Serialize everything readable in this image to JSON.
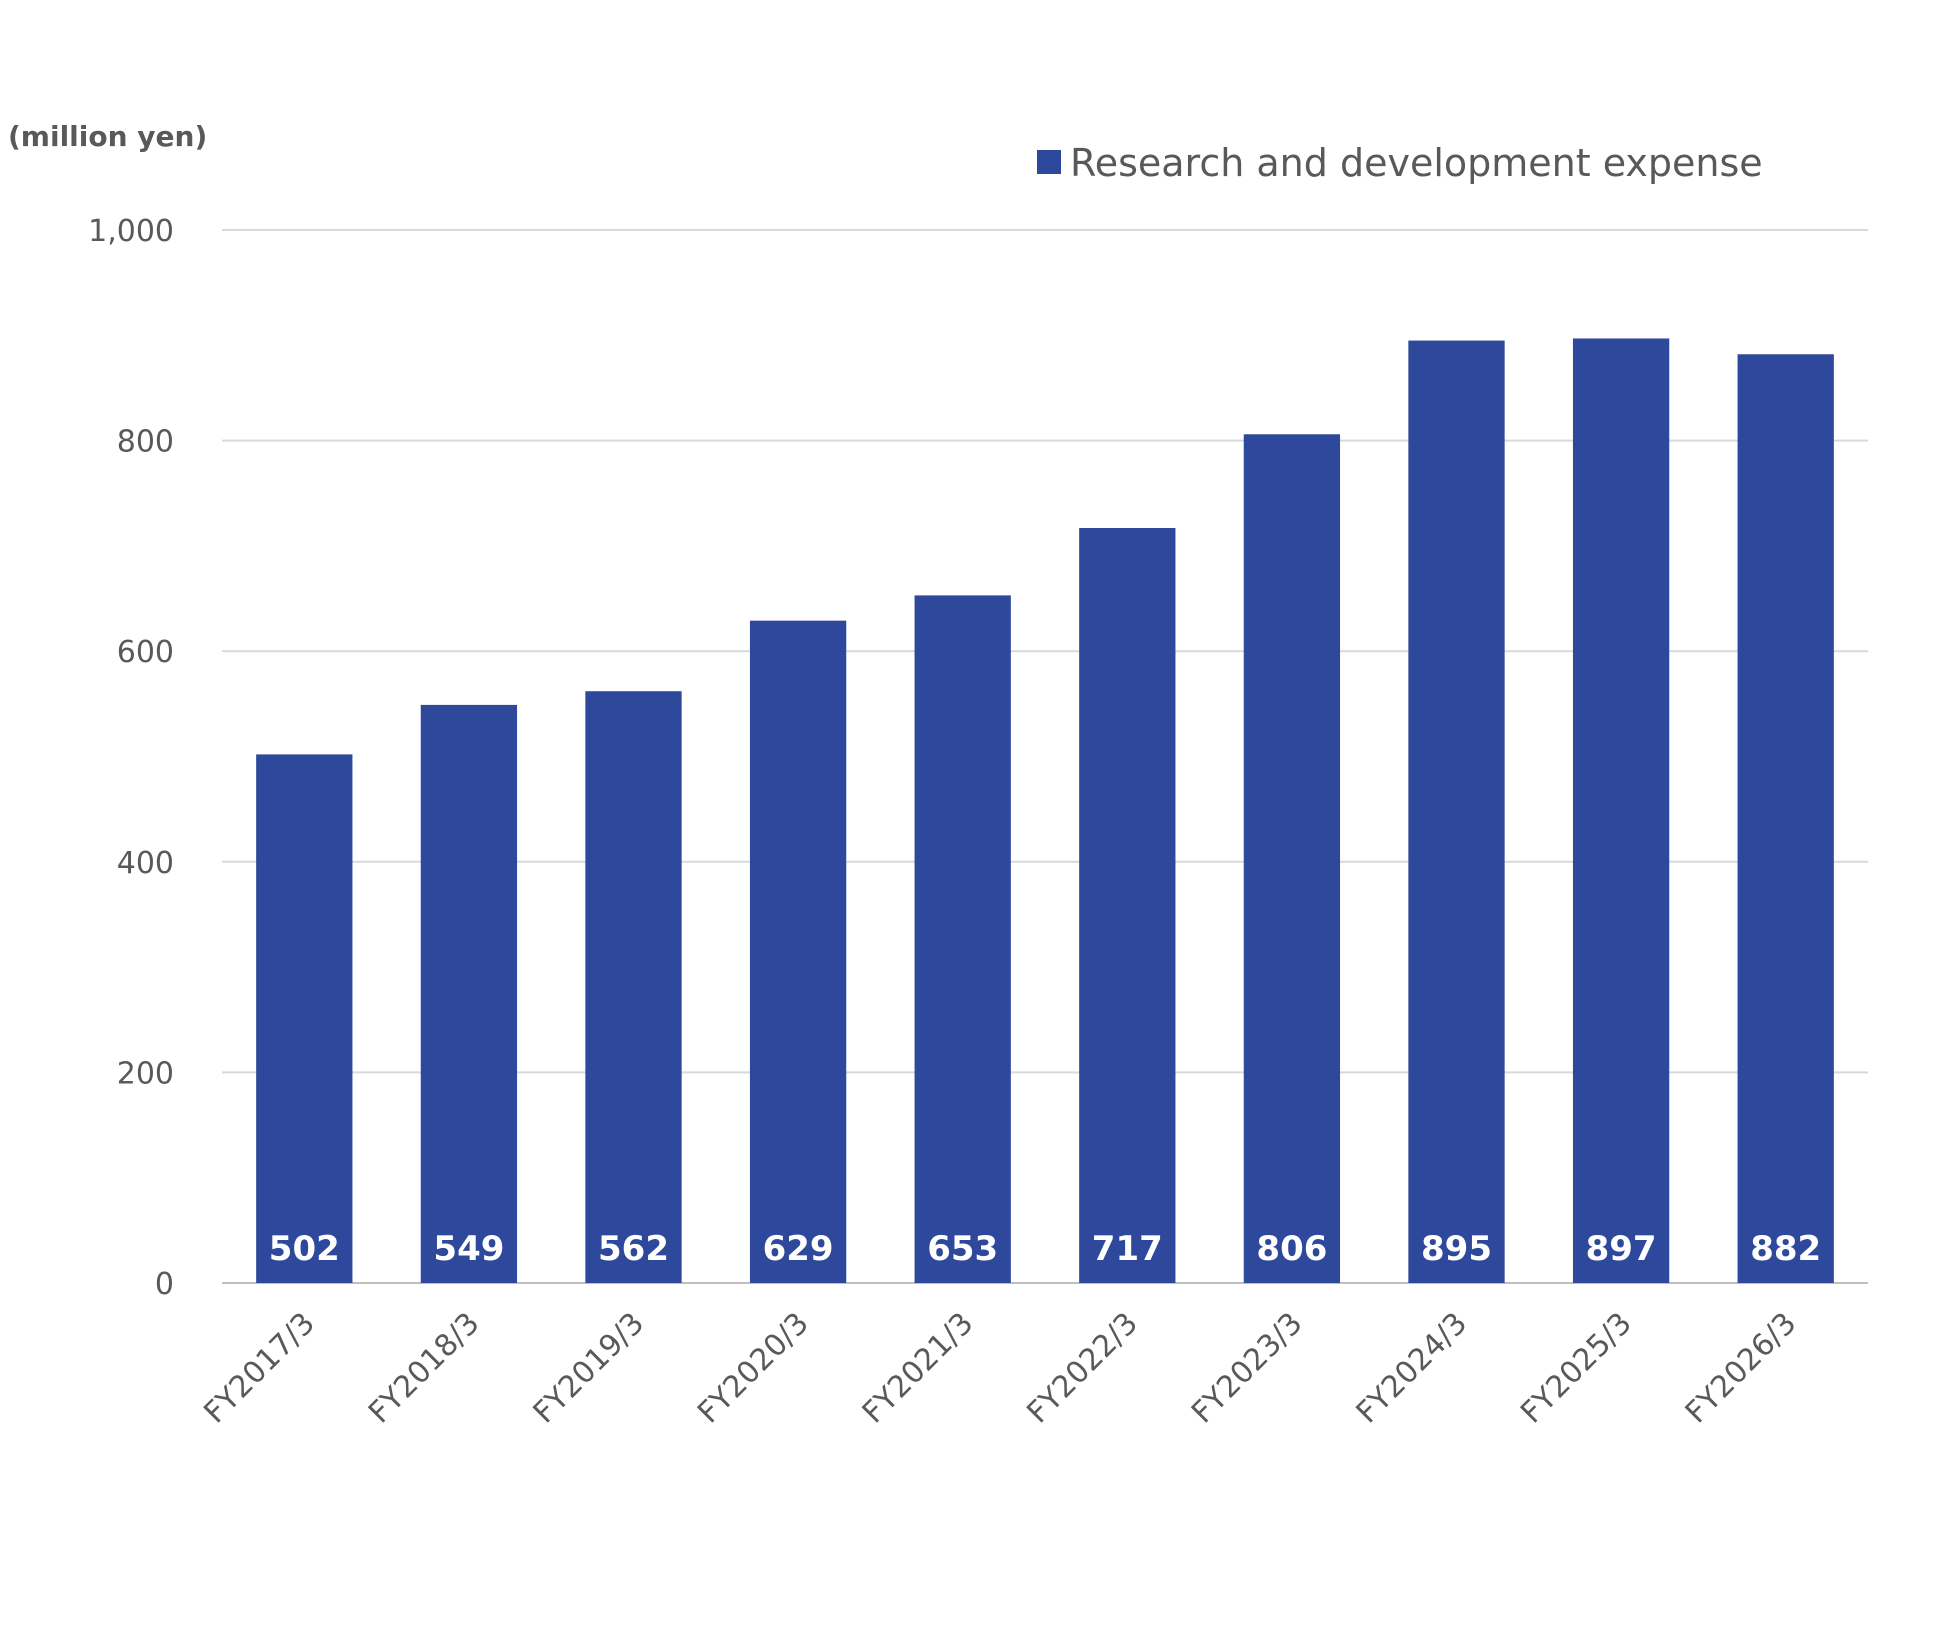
{
  "chart_data": {
    "type": "bar",
    "unit_label": "(million yen)",
    "categories": [
      "FY2017/3",
      "FY2018/3",
      "FY2019/3",
      "FY2020/3",
      "FY2021/3",
      "FY2022/3",
      "FY2023/3",
      "FY2024/3",
      "FY2025/3",
      "FY2026/3"
    ],
    "series": [
      {
        "name": "Research and development expense",
        "values": [
          502,
          549,
          562,
          629,
          653,
          717,
          806,
          895,
          897,
          882
        ],
        "color": "#2E489B"
      }
    ],
    "ylim": [
      0,
      1000
    ],
    "yticks": [
      0,
      200,
      400,
      600,
      800,
      1000
    ],
    "ytick_labels": [
      "0",
      "200",
      "400",
      "600",
      "800",
      "1,000"
    ],
    "grid": true,
    "legend_position": "top-right",
    "data_labels": "inside-bottom",
    "grid_color": "#D9D9D9",
    "text_color": "#595959"
  }
}
